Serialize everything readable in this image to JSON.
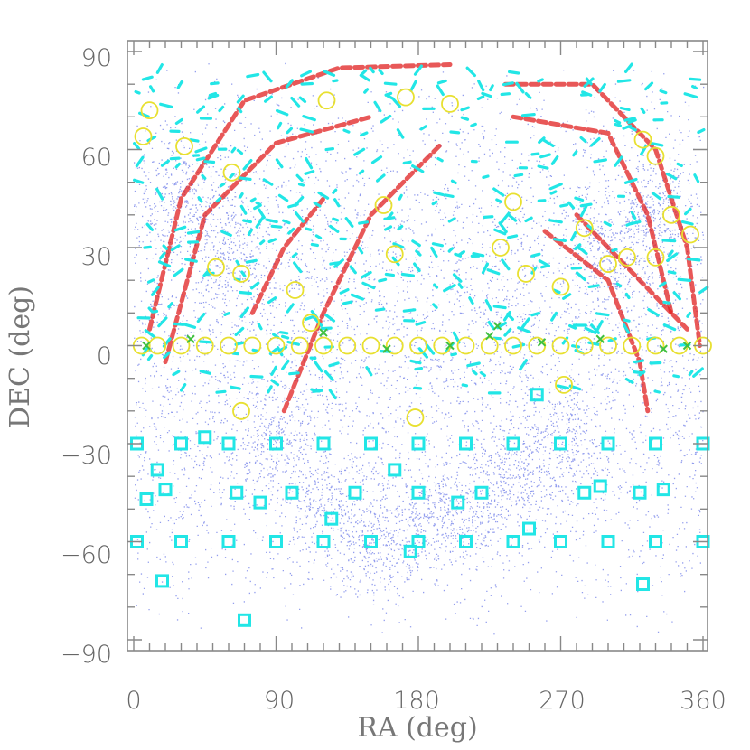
{
  "chart_data": {
    "type": "scatter",
    "title": "",
    "xlabel": "RA (deg)",
    "ylabel": "DEC (deg)",
    "xlim": [
      0,
      360
    ],
    "ylim": [
      -90,
      90
    ],
    "xticks": [
      0,
      90,
      180,
      270,
      360
    ],
    "yticks": [
      90,
      60,
      30,
      0,
      -30,
      -60,
      -90
    ],
    "xtick_labels": [
      "0",
      "90",
      "180",
      "270",
      "360"
    ],
    "ytick_labels": [
      "90",
      "60",
      "30",
      "0",
      "−30",
      "−60",
      "−90"
    ],
    "grid": false,
    "colors": {
      "background_points": "#3a4fe0",
      "red_tracks": "#e02020",
      "cyan_markers": "#22e6e6",
      "yellow_circles": "#e8e030",
      "green_crosses": "#40c040",
      "axes": "#888888"
    },
    "series": [
      {
        "marker": "dot",
        "color": "#3a4fe0",
        "x": [
          30,
          60,
          90,
          120,
          150,
          180,
          210,
          240,
          270,
          300,
          330
        ],
        "y": [
          45,
          30,
          -30,
          -50,
          -60,
          -55,
          -50,
          -40,
          -30,
          30,
          40
        ]
      },
      {
        "marker": "square",
        "color": "#22e6e6",
        "x": [
          2,
          30,
          60,
          90,
          120,
          150,
          180,
          210,
          240,
          270,
          300,
          330,
          360,
          2,
          30,
          60,
          90,
          120,
          150,
          180,
          210,
          240,
          270,
          300,
          330,
          360,
          8,
          15,
          20,
          45,
          65,
          80,
          100,
          125,
          140,
          165,
          180,
          205,
          220,
          250,
          285,
          295,
          320,
          335,
          18,
          70,
          175,
          255,
          322
        ],
        "y": [
          -30,
          -30,
          -30,
          -30,
          -30,
          -30,
          -30,
          -30,
          -30,
          -30,
          -30,
          -30,
          -30,
          -60,
          -60,
          -60,
          -60,
          -60,
          -60,
          -60,
          -60,
          -60,
          -60,
          -60,
          -60,
          -60,
          -47,
          -38,
          -44,
          -28,
          -45,
          -48,
          -45,
          -53,
          -45,
          -38,
          -45,
          -48,
          -45,
          -56,
          -45,
          -43,
          -45,
          -44,
          -72,
          -84,
          -63,
          -15,
          -73
        ]
      },
      {
        "marker": "circle",
        "color": "#e8e030",
        "x": [
          5,
          15,
          30,
          45,
          60,
          75,
          90,
          105,
          120,
          135,
          150,
          165,
          180,
          195,
          210,
          225,
          240,
          255,
          270,
          285,
          300,
          315,
          330,
          345,
          360,
          10,
          6,
          32,
          62,
          122,
          172,
          200,
          322,
          330,
          52,
          68,
          102,
          112,
          158,
          165,
          240,
          248,
          270,
          312,
          340,
          352,
          285,
          300,
          330,
          232,
          68,
          178,
          272
        ],
        "y": [
          0,
          0,
          0,
          0,
          0,
          0,
          0,
          0,
          0,
          0,
          0,
          0,
          0,
          0,
          0,
          0,
          0,
          0,
          0,
          0,
          0,
          0,
          0,
          0,
          0,
          72,
          64,
          61,
          53,
          75,
          76,
          74,
          63,
          58,
          24,
          22,
          17,
          7,
          43,
          28,
          44,
          22,
          18,
          27,
          40,
          34,
          36,
          25,
          27,
          30,
          -20,
          -22,
          -12
        ]
      },
      {
        "marker": "cross",
        "color": "#40c040",
        "x": [
          8,
          36,
          120,
          160,
          200,
          225,
          258,
          295,
          335,
          350,
          230
        ],
        "y": [
          0,
          2,
          4,
          -1,
          0,
          3,
          1,
          2,
          -1,
          0,
          6
        ]
      }
    ]
  }
}
